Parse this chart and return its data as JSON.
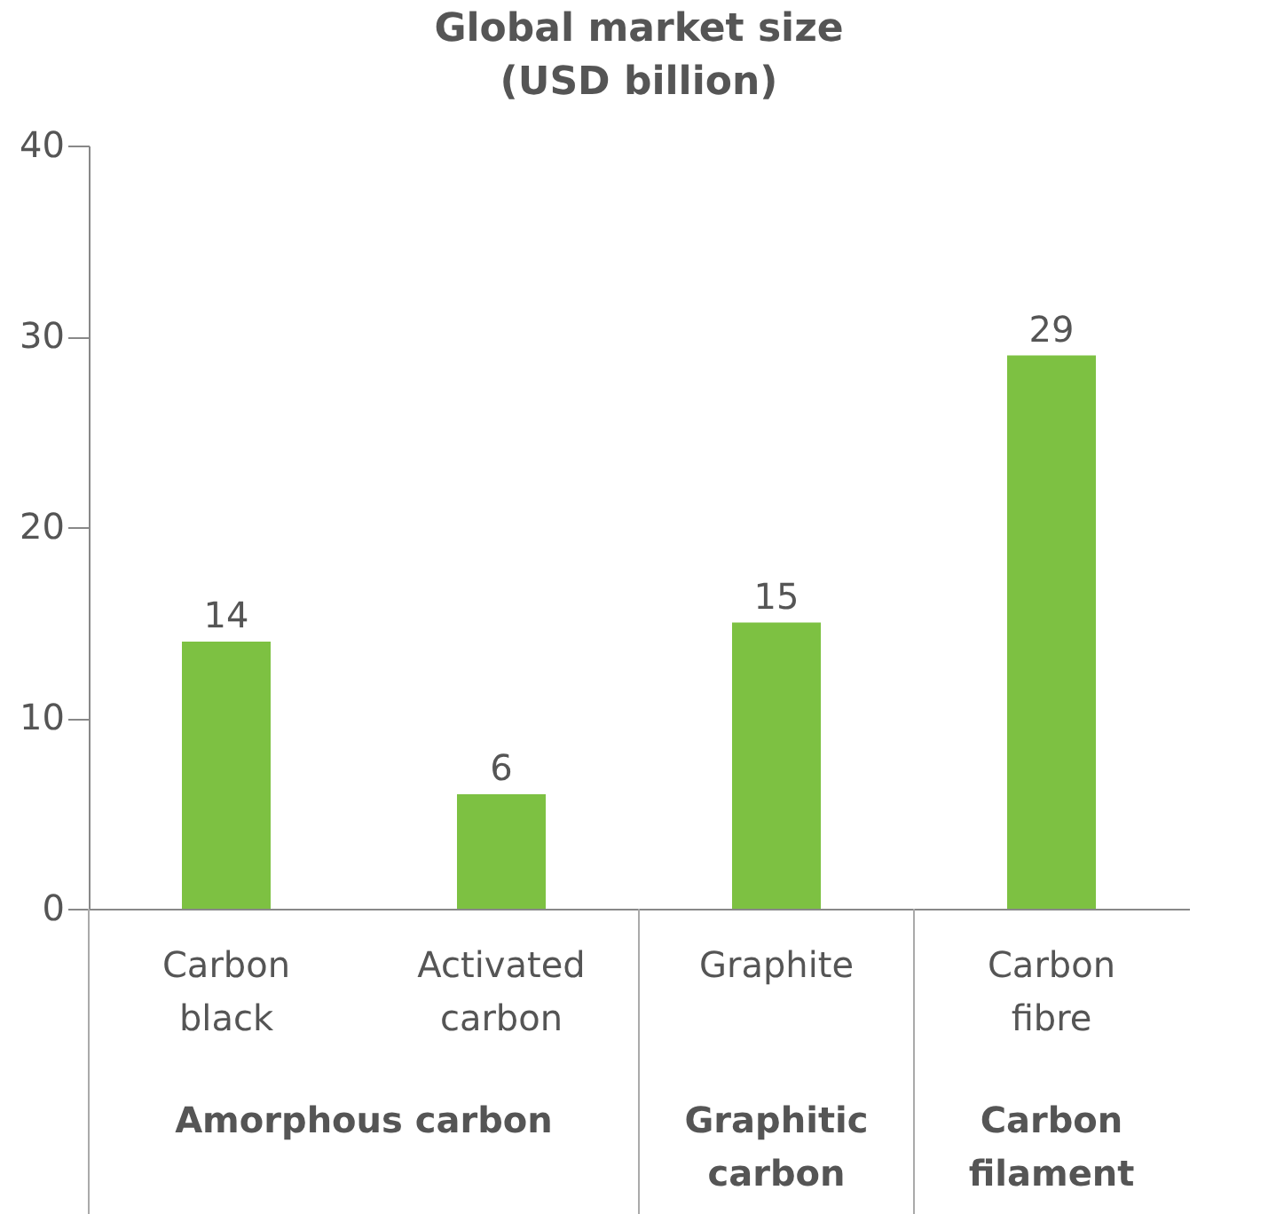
{
  "chart_data": {
    "type": "bar",
    "title": "Global market size\n(USD billion)",
    "categories": [
      "Carbon black",
      "Activated carbon",
      "Graphite",
      "Carbon fibre"
    ],
    "values": [
      14,
      6,
      15,
      29
    ],
    "color": "#7dc142",
    "data_labels": true,
    "ylim": [
      0,
      40
    ],
    "yticks": [
      0,
      10,
      20,
      30,
      40
    ],
    "grid": false,
    "annotations": [
      "Amorphous carbon",
      "Graphitic carbon",
      "Carbon filament"
    ]
  }
}
